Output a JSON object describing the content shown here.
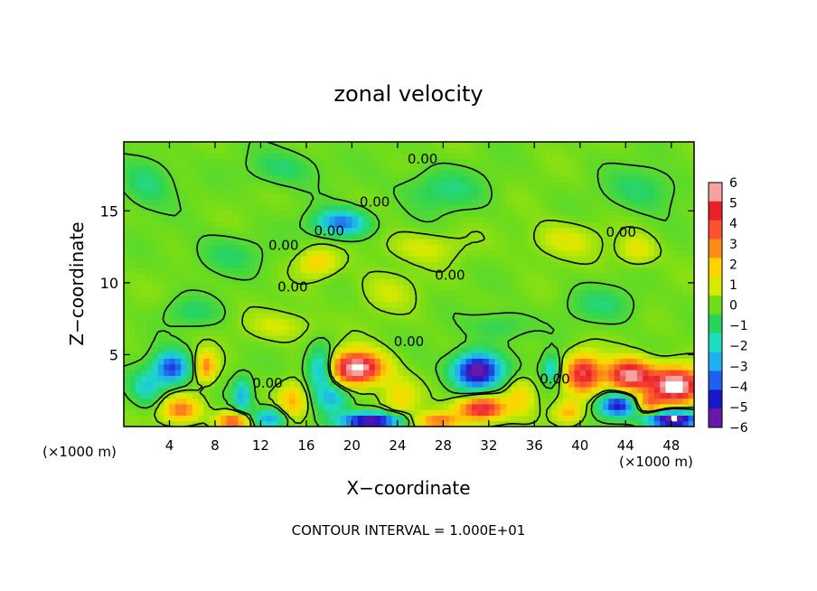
{
  "chart_data": {
    "type": "heatmap",
    "title": "zonal velocity",
    "xlabel": "X−coordinate",
    "ylabel": "Z−coordinate",
    "x_unit_left": "(×1000 m)",
    "x_unit_right": "(×1000 m)",
    "xlim": [
      0,
      50
    ],
    "ylim": [
      0,
      19.8
    ],
    "x_ticks": [
      4,
      8,
      12,
      16,
      20,
      24,
      28,
      32,
      36,
      40,
      44,
      48
    ],
    "y_ticks": [
      5,
      10,
      15
    ],
    "colorbar": {
      "labels": [
        "6",
        "5",
        "4",
        "3",
        "2",
        "1",
        "0",
        "−1",
        "−2",
        "−3",
        "−4",
        "−5",
        "−6"
      ],
      "colors": [
        "#f4a3a0",
        "#e8202a",
        "#ff5030",
        "#ff8c1a",
        "#ffd400",
        "#d6ea00",
        "#6fdc1a",
        "#2ad45a",
        "#1fdcc0",
        "#1eb0f0",
        "#2060f0",
        "#1a18c8",
        "#6a18a8"
      ]
    },
    "contour_labels": [
      {
        "text": "0.00",
        "x": 18.0,
        "y": 13.3
      },
      {
        "text": "0.00",
        "x": 14.0,
        "y": 12.3
      },
      {
        "text": "0.00",
        "x": 14.8,
        "y": 9.4
      },
      {
        "text": "0.00",
        "x": 26.2,
        "y": 18.3
      },
      {
        "text": "0.00",
        "x": 22.0,
        "y": 15.3
      },
      {
        "text": "0.00",
        "x": 28.6,
        "y": 10.2
      },
      {
        "text": "0.00",
        "x": 43.6,
        "y": 13.2
      },
      {
        "text": "0.00",
        "x": 25.0,
        "y": 5.6
      },
      {
        "text": "0.00",
        "x": 12.6,
        "y": 2.7
      },
      {
        "text": "0.00",
        "x": 37.8,
        "y": 3.0
      }
    ],
    "features": [
      {
        "x": 4.2,
        "y": 4.1,
        "v": -4.6,
        "rx": 1.5,
        "ry": 1.1
      },
      {
        "x": 2.0,
        "y": 2.8,
        "v": -2.2,
        "rx": 1.4,
        "ry": 1.2
      },
      {
        "x": 7.2,
        "y": 4.2,
        "v": 3.2,
        "rx": 0.9,
        "ry": 1.0
      },
      {
        "x": 5.0,
        "y": 1.2,
        "v": 3.5,
        "rx": 1.6,
        "ry": 0.9
      },
      {
        "x": 10.4,
        "y": 2.2,
        "v": -2.8,
        "rx": 0.8,
        "ry": 1.2
      },
      {
        "x": 9.6,
        "y": 0.4,
        "v": 4.0,
        "rx": 1.4,
        "ry": 0.6
      },
      {
        "x": 12.8,
        "y": 0.6,
        "v": -3.2,
        "rx": 1.5,
        "ry": 0.7
      },
      {
        "x": 14.8,
        "y": 1.8,
        "v": 2.4,
        "rx": 1.2,
        "ry": 1.2
      },
      {
        "x": 17.3,
        "y": 4.0,
        "v": -3.6,
        "rx": 1.2,
        "ry": 1.4
      },
      {
        "x": 20.4,
        "y": 4.1,
        "v": 7.0,
        "rx": 2.3,
        "ry": 1.1
      },
      {
        "x": 18.3,
        "y": 2.0,
        "v": -2.6,
        "rx": 1.4,
        "ry": 1.0
      },
      {
        "x": 21.7,
        "y": 0.4,
        "v": -6.5,
        "rx": 2.6,
        "ry": 0.6
      },
      {
        "x": 24.2,
        "y": 2.0,
        "v": 1.8,
        "rx": 1.5,
        "ry": 1.3
      },
      {
        "x": 19.1,
        "y": 14.2,
        "v": -3.8,
        "rx": 2.3,
        "ry": 0.9
      },
      {
        "x": 17.0,
        "y": 11.4,
        "v": 2.0,
        "rx": 1.6,
        "ry": 0.9
      },
      {
        "x": 31.0,
        "y": 3.9,
        "v": -6.6,
        "rx": 2.0,
        "ry": 1.2
      },
      {
        "x": 31.4,
        "y": 1.3,
        "v": 5.6,
        "rx": 2.0,
        "ry": 0.8
      },
      {
        "x": 27.5,
        "y": 0.4,
        "v": 3.5,
        "rx": 2.0,
        "ry": 0.6
      },
      {
        "x": 34.8,
        "y": 2.2,
        "v": 1.8,
        "rx": 1.2,
        "ry": 1.2
      },
      {
        "x": 37.5,
        "y": 4.0,
        "v": -2.6,
        "rx": 0.8,
        "ry": 1.0
      },
      {
        "x": 40.3,
        "y": 3.7,
        "v": 5.2,
        "rx": 1.5,
        "ry": 1.3
      },
      {
        "x": 44.3,
        "y": 3.6,
        "v": 6.2,
        "rx": 2.0,
        "ry": 1.1
      },
      {
        "x": 43.3,
        "y": 1.5,
        "v": -5.2,
        "rx": 1.6,
        "ry": 0.8
      },
      {
        "x": 48.4,
        "y": 2.9,
        "v": 7.2,
        "rx": 2.2,
        "ry": 1.2
      },
      {
        "x": 48.2,
        "y": 0.5,
        "v": -6.8,
        "rx": 2.3,
        "ry": 0.6
      },
      {
        "x": 39.0,
        "y": 1.0,
        "v": 2.6,
        "rx": 1.2,
        "ry": 0.8
      },
      {
        "x": 46.0,
        "y": 1.6,
        "v": 3.0,
        "rx": 1.2,
        "ry": 0.7
      },
      {
        "x": 2.0,
        "y": 17.0,
        "v": -1.4,
        "rx": 2.2,
        "ry": 1.6
      },
      {
        "x": 14.0,
        "y": 18.0,
        "v": -1.2,
        "rx": 3.0,
        "ry": 1.2
      },
      {
        "x": 28.0,
        "y": 16.5,
        "v": -1.3,
        "rx": 3.5,
        "ry": 1.4
      },
      {
        "x": 45.5,
        "y": 16.5,
        "v": -1.2,
        "rx": 3.0,
        "ry": 1.5
      },
      {
        "x": 38.5,
        "y": 13.0,
        "v": 1.1,
        "rx": 3.0,
        "ry": 1.2
      },
      {
        "x": 45.0,
        "y": 12.3,
        "v": 1.5,
        "rx": 1.6,
        "ry": 1.0
      },
      {
        "x": 9.0,
        "y": 12.0,
        "v": -1.0,
        "rx": 3.0,
        "ry": 1.3
      },
      {
        "x": 26.0,
        "y": 12.5,
        "v": 1.0,
        "rx": 3.5,
        "ry": 1.0
      },
      {
        "x": 42.0,
        "y": 8.5,
        "v": -1.1,
        "rx": 3.0,
        "ry": 1.2
      },
      {
        "x": 14.0,
        "y": 7.0,
        "v": 1.0,
        "rx": 3.0,
        "ry": 1.0
      },
      {
        "x": 33.0,
        "y": 7.0,
        "v": -1.1,
        "rx": 2.5,
        "ry": 1.0
      },
      {
        "x": 6.0,
        "y": 8.0,
        "v": -1.0,
        "rx": 2.5,
        "ry": 1.0
      },
      {
        "x": 23.0,
        "y": 9.5,
        "v": 0.8,
        "rx": 2.5,
        "ry": 1.4
      }
    ],
    "contour_interval_text": "CONTOUR INTERVAL = 1.000E+01"
  }
}
